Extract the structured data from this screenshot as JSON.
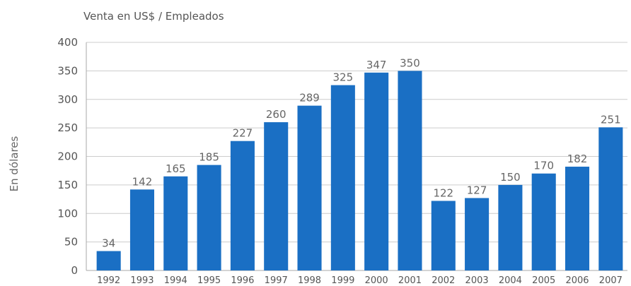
{
  "chart_data": {
    "type": "bar",
    "title": "Venta en US$ / Empleados",
    "xlabel": "",
    "ylabel": "En dólares",
    "categories": [
      "1992",
      "1993",
      "1994",
      "1995",
      "1996",
      "1997",
      "1998",
      "1999",
      "2000",
      "2001",
      "2002",
      "2003",
      "2004",
      "2005",
      "2006",
      "2007"
    ],
    "values": [
      34,
      142,
      165,
      185,
      227,
      260,
      289,
      325,
      347,
      350,
      122,
      127,
      150,
      170,
      182,
      251
    ],
    "ylim": [
      0,
      400
    ],
    "yticks": [
      0,
      50,
      100,
      150,
      200,
      250,
      300,
      350,
      400
    ],
    "grid": true,
    "bar_color": "#1a6fc4",
    "data_labels": true
  }
}
